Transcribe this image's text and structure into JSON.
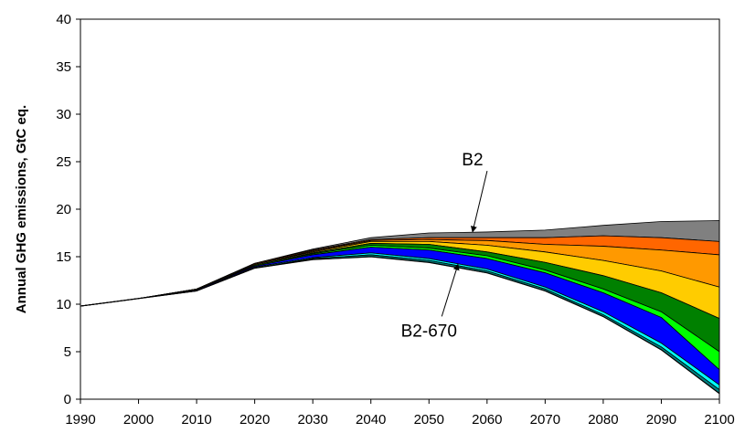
{
  "chart_data": {
    "type": "area",
    "title": "",
    "xlabel": "",
    "ylabel": "Annual GHG emissions, GtC eq.",
    "xlim": [
      1990,
      2100
    ],
    "ylim": [
      0,
      40
    ],
    "grid": false,
    "x": [
      1990,
      2000,
      2010,
      2020,
      2030,
      2040,
      2050,
      2060,
      2070,
      2080,
      2090,
      2100
    ],
    "x_ticks": [
      "1990",
      "2000",
      "2010",
      "2020",
      "2030",
      "2040",
      "2050",
      "2060",
      "2070",
      "2080",
      "2090",
      "2100"
    ],
    "y_ticks": [
      "0",
      "5",
      "10",
      "15",
      "20",
      "25",
      "30",
      "35",
      "40"
    ],
    "bands": [
      {
        "color": "#808080",
        "values": [
          9.8,
          10.6,
          11.6,
          14.3,
          15.8,
          17.0,
          17.5,
          17.6,
          17.8,
          18.3,
          18.7,
          18.8
        ]
      },
      {
        "color": "#FF6600",
        "values": [
          9.8,
          10.6,
          11.6,
          14.3,
          15.7,
          16.8,
          17.0,
          17.0,
          17.0,
          17.2,
          17.0,
          16.6
        ]
      },
      {
        "color": "#FF9900",
        "values": [
          9.8,
          10.6,
          11.6,
          14.2,
          15.6,
          16.7,
          16.8,
          16.7,
          16.3,
          16.1,
          15.7,
          15.2
        ]
      },
      {
        "color": "#FFCC00",
        "values": [
          9.8,
          10.6,
          11.6,
          14.2,
          15.5,
          16.6,
          16.6,
          16.2,
          15.5,
          14.6,
          13.5,
          11.8
        ]
      },
      {
        "color": "#008000",
        "values": [
          9.8,
          10.6,
          11.5,
          14.1,
          15.4,
          16.4,
          16.3,
          15.5,
          14.4,
          13.0,
          11.2,
          8.5
        ]
      },
      {
        "color": "#00FF00",
        "values": [
          9.8,
          10.6,
          11.5,
          14.1,
          15.3,
          16.2,
          15.9,
          15.1,
          13.6,
          11.6,
          9.2,
          5.0
        ]
      },
      {
        "color": "#0000FF",
        "values": [
          9.8,
          10.6,
          11.5,
          14.0,
          15.2,
          16.0,
          15.7,
          14.8,
          13.3,
          11.2,
          8.6,
          3.1
        ]
      },
      {
        "color": "#00FFFF",
        "values": [
          9.8,
          10.6,
          11.4,
          13.9,
          14.9,
          15.4,
          14.8,
          13.7,
          11.8,
          9.2,
          5.9,
          1.5
        ]
      },
      {
        "color": "#008080",
        "values": [
          9.8,
          10.6,
          11.4,
          13.8,
          14.8,
          15.2,
          14.6,
          13.5,
          11.6,
          8.9,
          5.5,
          1.0
        ]
      }
    ],
    "baseline": [
      9.8,
      10.6,
      11.4,
      13.8,
      14.7,
      15.0,
      14.4,
      13.3,
      11.4,
      8.7,
      5.2,
      0.6
    ],
    "annotations": [
      {
        "label": "B2",
        "text_x": 2057.5,
        "text_y": 24.6,
        "arrow_to_x": 2057.5,
        "arrow_to_y": 17.6
      },
      {
        "label": "B2-670",
        "text_x": 2050,
        "text_y": 6.6,
        "arrow_to_x": 2055,
        "arrow_to_y": 14.2
      }
    ]
  }
}
